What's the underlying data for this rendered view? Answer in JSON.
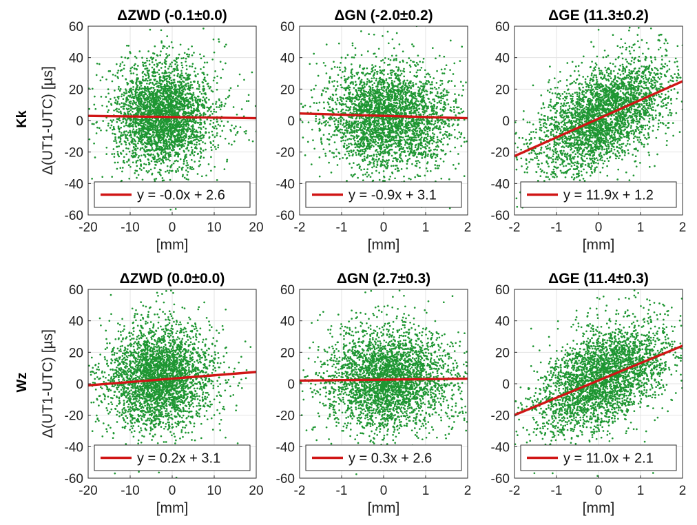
{
  "row_labels": [
    "Kk",
    "Wz"
  ],
  "chart_data": [
    {
      "type": "scatter",
      "row": "Kk",
      "title": "ΔZWD (-0.1±0.0)",
      "xlabel": "[mm]",
      "ylabel": "Δ(UT1-UTC) [µs]",
      "xlim": [
        -20,
        20
      ],
      "ylim": [
        -60,
        60
      ],
      "xticks": [
        "-20",
        "-10",
        "0",
        "10",
        "20"
      ],
      "yticks": [
        "-60",
        "-40",
        "-20",
        "0",
        "20",
        "40",
        "60"
      ],
      "grid": true,
      "point_color": "#1e9632",
      "line_color": "#d01515",
      "scatter_center": [
        -2,
        3
      ],
      "scatter_spread": [
        6,
        16
      ],
      "points_shown": "approx. 3500",
      "fit": {
        "slope": -0.0,
        "intercept": 2.6,
        "label": "y = -0.0x + 2.6",
        "endpoints_y": [
          3,
          1.5
        ]
      },
      "legend_position": "bottom"
    },
    {
      "type": "scatter",
      "row": "Kk",
      "title": "ΔGN (-2.0±0.2)",
      "xlabel": "[mm]",
      "ylabel": "",
      "xlim": [
        -2,
        2
      ],
      "ylim": [
        -60,
        60
      ],
      "xticks": [
        "-2",
        "-1",
        "0",
        "1",
        "2"
      ],
      "yticks": [
        "-60",
        "-40",
        "-20",
        "0",
        "20",
        "40",
        "60"
      ],
      "grid": true,
      "point_color": "#1e9632",
      "line_color": "#d01515",
      "scatter_center": [
        0.1,
        2
      ],
      "scatter_spread": [
        0.75,
        16
      ],
      "fit": {
        "slope": -0.9,
        "intercept": 3.1,
        "label": "y = -0.9x + 3.1",
        "endpoints_y": [
          4.5,
          1.5
        ]
      },
      "legend_position": "bottom"
    },
    {
      "type": "scatter",
      "row": "Kk",
      "title": "ΔGE (11.3±0.2)",
      "xlabel": "[mm]",
      "ylabel": "",
      "xlim": [
        -2,
        2
      ],
      "ylim": [
        -60,
        60
      ],
      "xticks": [
        "-2",
        "-1",
        "0",
        "1",
        "2"
      ],
      "yticks": [
        "-60",
        "-40",
        "-20",
        "0",
        "20",
        "40",
        "60"
      ],
      "grid": true,
      "point_color": "#1e9632",
      "line_color": "#d01515",
      "scatter_center": [
        0.1,
        3
      ],
      "scatter_spread": [
        0.75,
        15
      ],
      "fit": {
        "slope": 11.9,
        "intercept": 1.2,
        "label": "y = 11.9x + 1.2",
        "endpoints_y": [
          -22.6,
          25
        ]
      },
      "legend_position": "bottom"
    },
    {
      "type": "scatter",
      "row": "Wz",
      "title": "ΔZWD (0.0±0.0)",
      "xlabel": "[mm]",
      "ylabel": "Δ(UT1-UTC) [µs]",
      "xlim": [
        -20,
        20
      ],
      "ylim": [
        -60,
        60
      ],
      "xticks": [
        "-20",
        "-10",
        "0",
        "10",
        "20"
      ],
      "yticks": [
        "-60",
        "-40",
        "-20",
        "0",
        "20",
        "40",
        "60"
      ],
      "grid": true,
      "point_color": "#1e9632",
      "line_color": "#d01515",
      "scatter_center": [
        -3,
        4
      ],
      "scatter_spread": [
        6,
        16
      ],
      "fit": {
        "slope": 0.2,
        "intercept": 3.1,
        "label": "y = 0.2x + 3.1",
        "endpoints_y": [
          -1,
          7.5
        ]
      },
      "legend_position": "bottom"
    },
    {
      "type": "scatter",
      "row": "Wz",
      "title": "ΔGN (2.7±0.3)",
      "xlabel": "[mm]",
      "ylabel": "",
      "xlim": [
        -2,
        2
      ],
      "ylim": [
        -60,
        60
      ],
      "xticks": [
        "-2",
        "-1",
        "0",
        "1",
        "2"
      ],
      "yticks": [
        "-60",
        "-40",
        "-20",
        "0",
        "20",
        "40",
        "60"
      ],
      "grid": true,
      "point_color": "#1e9632",
      "line_color": "#d01515",
      "scatter_center": [
        0.1,
        3
      ],
      "scatter_spread": [
        0.75,
        16
      ],
      "fit": {
        "slope": 0.3,
        "intercept": 2.6,
        "label": "y = 0.3x + 2.6",
        "endpoints_y": [
          2,
          3.2
        ]
      },
      "legend_position": "bottom"
    },
    {
      "type": "scatter",
      "row": "Wz",
      "title": "ΔGE (11.4±0.3)",
      "xlabel": "[mm]",
      "ylabel": "",
      "xlim": [
        -2,
        2
      ],
      "ylim": [
        -60,
        60
      ],
      "xticks": [
        "-2",
        "-1",
        "0",
        "1",
        "2"
      ],
      "yticks": [
        "-60",
        "-40",
        "-20",
        "0",
        "20",
        "40",
        "60"
      ],
      "grid": true,
      "point_color": "#1e9632",
      "line_color": "#d01515",
      "scatter_center": [
        0.1,
        4
      ],
      "scatter_spread": [
        0.75,
        15
      ],
      "fit": {
        "slope": 11.0,
        "intercept": 2.1,
        "label": "y = 11.0x + 2.1",
        "endpoints_y": [
          -19.9,
          24.1
        ]
      },
      "legend_position": "bottom"
    }
  ]
}
